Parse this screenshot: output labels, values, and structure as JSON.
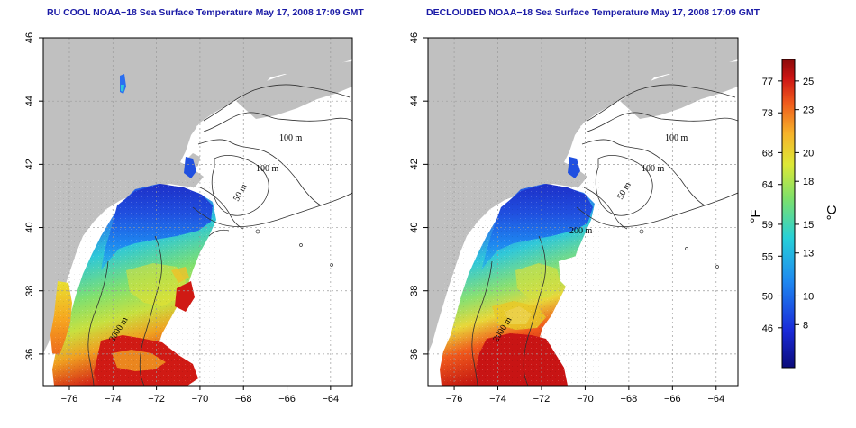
{
  "panels": [
    {
      "title": "RU COOL NOAA−18 Sea Surface Temperature May 17, 2008 17:09 GMT",
      "type": "raw"
    },
    {
      "title": "DECLOUDED NOAA−18 Sea Surface Temperature May 17, 2008 17:09 GMT",
      "type": "declouded"
    }
  ],
  "axes": {
    "lon_ticks": [
      "-76",
      "-74",
      "-72",
      "-70",
      "-68",
      "-66",
      "-64"
    ],
    "lat_ticks": [
      "46",
      "44",
      "42",
      "40",
      "38",
      "36"
    ],
    "lon_range": [
      -77.2,
      -63.0
    ],
    "lat_range": [
      35.0,
      46.0
    ],
    "grid": true,
    "grid_style": "dotted"
  },
  "contour_labels": [
    "100 m",
    "100 m",
    "50 m",
    "200 m",
    "2000 m"
  ],
  "colorbar": {
    "fahrenheit_ticks": [
      "77",
      "73",
      "68",
      "64",
      "59",
      "55",
      "50",
      "46"
    ],
    "celsius_ticks": [
      "25",
      "23",
      "20",
      "18",
      "15",
      "13",
      "10",
      "8"
    ],
    "fahrenheit_unit": "°F",
    "celsius_unit": "°C",
    "range_c": [
      5,
      26.5
    ]
  },
  "colors": {
    "title": "#1a1aa6",
    "land": "#c0c0c0",
    "warm": "#c8001e",
    "cold": "#1a1ab4"
  }
}
